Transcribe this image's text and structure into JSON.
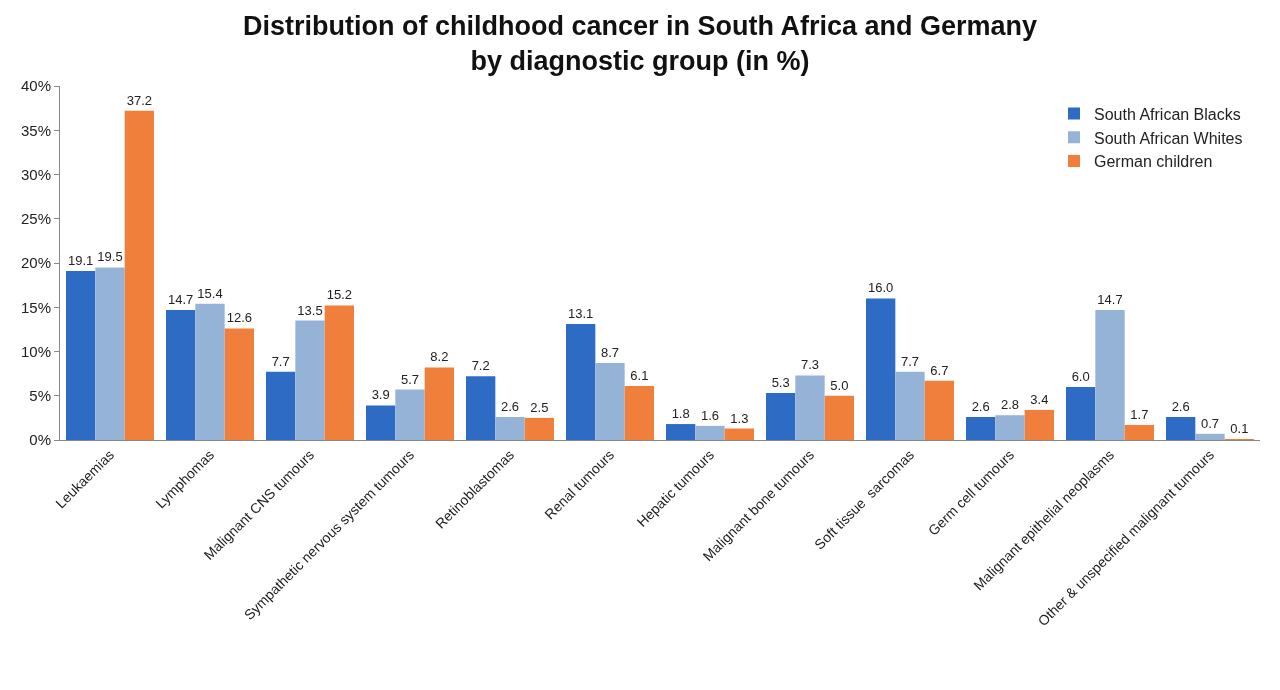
{
  "chart_data": {
    "type": "bar",
    "title": "Distribution of childhood cancer in South Africa and Germany\nby diagnostic group (in %)",
    "categories": [
      "Leukaemias",
      "Lymphomas",
      "Malignant CNS tumours",
      "Sympathetic nervous system tumours",
      "Retinoblastomas",
      "Renal tumours",
      "Hepatic tumours",
      "Malignant bone tumours",
      "Soft tissue  sarcomas",
      "Germ cell tumours",
      "Malignant epithelial neoplasms",
      "Other & unspecified malignant tumours"
    ],
    "series": [
      {
        "name": "South African Blacks",
        "color": "#2e6bc4",
        "values": [
          19.1,
          14.7,
          7.7,
          3.9,
          7.2,
          13.1,
          1.8,
          5.3,
          16.0,
          2.6,
          6.0,
          2.6
        ],
        "value_labels": [
          "19.1",
          "14.7",
          "7.7",
          "3.9",
          "7.2",
          "13.1",
          "1.8",
          "5.3",
          "16.0",
          "2.6",
          "6.0",
          "2.6"
        ]
      },
      {
        "name": "South African Whites",
        "color": "#95b3d7",
        "values": [
          19.5,
          15.4,
          13.5,
          5.7,
          2.6,
          8.7,
          1.6,
          7.3,
          7.7,
          2.8,
          14.7,
          0.7
        ],
        "value_labels": [
          "19.5",
          "15.4",
          "13.5",
          "5.7",
          "2.6",
          "8.7",
          "1.6",
          "7.3",
          "7.7",
          "2.8",
          "14.7",
          "0.7"
        ]
      },
      {
        "name": "German children",
        "color": "#f07f3c",
        "values": [
          37.2,
          12.6,
          15.2,
          8.2,
          2.5,
          6.1,
          1.3,
          5.0,
          6.7,
          3.4,
          1.7,
          0.1
        ],
        "value_labels": [
          "37.2",
          "12.6",
          "15.2",
          "8.2",
          "2.5",
          "6.1",
          "1.3",
          "5.0",
          "6.7",
          "3.4",
          "1.7",
          "0.1"
        ]
      }
    ],
    "ylim": [
      0,
      40
    ],
    "yticks": [
      {
        "value": 0,
        "label": "0%"
      },
      {
        "value": 5,
        "label": "5%"
      },
      {
        "value": 10,
        "label": "10%"
      },
      {
        "value": 15,
        "label": "15%"
      },
      {
        "value": 20,
        "label": "20%"
      },
      {
        "value": 25,
        "label": "25%"
      },
      {
        "value": 30,
        "label": "30%"
      },
      {
        "value": 35,
        "label": "35%"
      },
      {
        "value": 40,
        "label": "40%"
      }
    ],
    "legend": "top right"
  }
}
